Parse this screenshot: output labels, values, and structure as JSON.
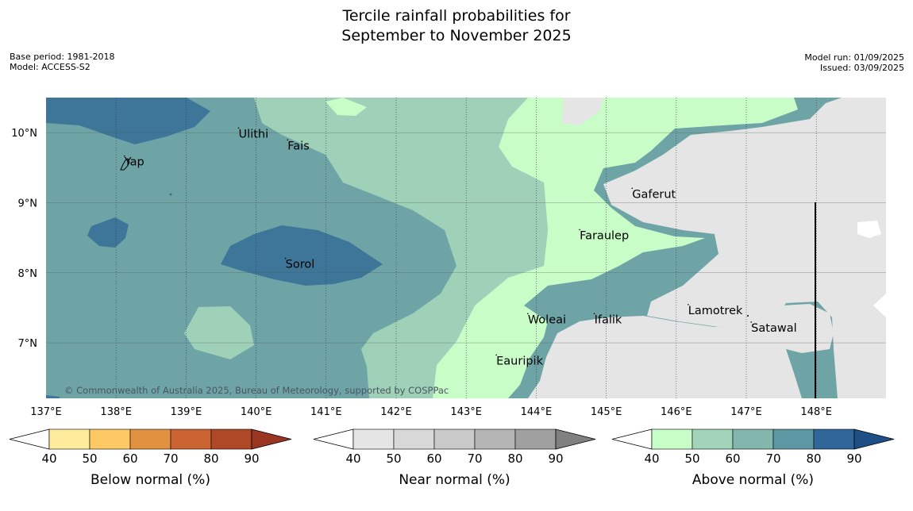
{
  "title_line1": "Tercile rainfall probabilities for",
  "title_line2": "September to November 2025",
  "meta_left": [
    "Base period: 1981-2018",
    "Model: ACCESS-S2"
  ],
  "meta_right": [
    "Model run: 01/09/2025",
    "Issued: 03/09/2025"
  ],
  "map": {
    "lon_labels": [
      "137°E",
      "138°E",
      "139°E",
      "140°E",
      "141°E",
      "142°E",
      "143°E",
      "144°E",
      "145°E",
      "146°E",
      "147°E",
      "148°E"
    ],
    "lat_labels": [
      "10°N",
      "9°N",
      "8°N",
      "7°N"
    ],
    "places": [
      {
        "name": "Ulithi",
        "lon": 139.75,
        "lat": 9.93
      },
      {
        "name": "Fais",
        "lon": 140.45,
        "lat": 9.76
      },
      {
        "name": "Yap",
        "lon": 138.12,
        "lat": 9.53
      },
      {
        "name": "Gaferut",
        "lon": 145.37,
        "lat": 9.07
      },
      {
        "name": "Faraulep",
        "lon": 144.62,
        "lat": 8.48
      },
      {
        "name": "Sorol",
        "lon": 140.42,
        "lat": 8.07
      },
      {
        "name": "Lamotrek",
        "lon": 146.17,
        "lat": 7.41
      },
      {
        "name": "Woleai",
        "lon": 143.88,
        "lat": 7.28
      },
      {
        "name": "Ifalik",
        "lon": 144.83,
        "lat": 7.28
      },
      {
        "name": "Satawal",
        "lon": 147.07,
        "lat": 7.16
      },
      {
        "name": "Eauripik",
        "lon": 143.43,
        "lat": 6.69
      }
    ],
    "copyright": "© Commonwealth of Australia 2025, Bureau of Meteorology, supported by COSPPac",
    "extent": {
      "lon": [
        137.0,
        149.0
      ],
      "lat": [
        6.2,
        10.5
      ]
    }
  },
  "colorbars": [
    {
      "title": "Below normal (%)",
      "ticks": [
        "40",
        "50",
        "60",
        "70",
        "80",
        "90"
      ],
      "colors": [
        "#ffffff",
        "#feeb9c",
        "#fdc964",
        "#e1913f",
        "#cc6332",
        "#ae4826",
        "#9a3522"
      ]
    },
    {
      "title": "Near normal (%)",
      "ticks": [
        "40",
        "50",
        "60",
        "70",
        "80",
        "90"
      ],
      "colors": [
        "#ffffff",
        "#e5e5e5",
        "#d8d8d8",
        "#c9c9c9",
        "#b5b5b5",
        "#a0a0a0",
        "#808080"
      ]
    },
    {
      "title": "Above normal (%)",
      "ticks": [
        "40",
        "50",
        "60",
        "70",
        "80",
        "90"
      ],
      "colors": [
        "#ffffff",
        "#c8fdc7",
        "#a1d4b8",
        "#83b6ac",
        "#5e97a4",
        "#306699",
        "#1e4f86"
      ]
    }
  ]
}
